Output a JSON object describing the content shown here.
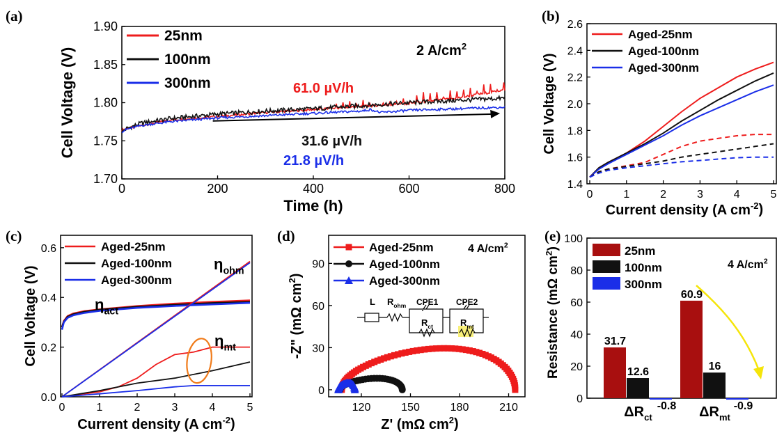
{
  "panels": [
    {
      "id": "a",
      "label": "(a)",
      "condition": "2 A/cm",
      "condition_sup": "2",
      "rates": [
        {
          "text": "61.0 µV/h",
          "color": "#ee1c1c"
        },
        {
          "text": "31.6 µV/h",
          "color": "#111111"
        },
        {
          "text": "21.8 µV/h",
          "color": "#1a2ee8"
        }
      ],
      "chart_data": {
        "type": "line",
        "xlabel": "Time (h)",
        "ylabel": "Cell Voltage (V)",
        "xlim": [
          0,
          800
        ],
        "ylim": [
          1.7,
          1.9
        ],
        "xticks": [
          "0",
          "200",
          "400",
          "600",
          "800"
        ],
        "yticks": [
          "1.70",
          "1.75",
          "1.80",
          "1.85",
          "1.90"
        ],
        "legend_position": "top-left",
        "series": [
          {
            "name": "25nm",
            "color": "#ee1c1c",
            "x": [
              0,
              10,
              40,
              100,
              200,
              300,
              400,
              500,
              600,
              700,
              800
            ],
            "y": [
              1.764,
              1.766,
              1.77,
              1.777,
              1.782,
              1.787,
              1.791,
              1.795,
              1.799,
              1.806,
              1.817
            ]
          },
          {
            "name": "100nm",
            "color": "#111111",
            "x": [
              0,
              10,
              40,
              100,
              200,
              300,
              400,
              500,
              600,
              700,
              800
            ],
            "y": [
              1.762,
              1.766,
              1.773,
              1.779,
              1.785,
              1.789,
              1.792,
              1.796,
              1.8,
              1.803,
              1.806
            ]
          },
          {
            "name": "300nm",
            "color": "#1a2ee8",
            "x": [
              0,
              10,
              40,
              100,
              200,
              300,
              400,
              500,
              520,
              540,
              600,
              700,
              800
            ],
            "y": [
              1.762,
              1.765,
              1.77,
              1.775,
              1.78,
              1.783,
              1.786,
              1.789,
              1.791,
              1.787,
              1.79,
              1.792,
              1.794
            ]
          }
        ],
        "arrow": {
          "x": [
            190,
            790
          ],
          "y": [
            1.776,
            1.786
          ]
        }
      }
    },
    {
      "id": "b",
      "label": "(b)",
      "chart_data": {
        "type": "line",
        "xlabel": "Current density (A cm",
        "xlabel_sup": "-2",
        "xlabel_tail": ")",
        "ylabel": "Cell Voltage (V)",
        "xlim": [
          0,
          5
        ],
        "ylim": [
          1.4,
          2.6
        ],
        "xticks": [
          "0",
          "1",
          "2",
          "3",
          "4",
          "5"
        ],
        "yticks": [
          "1.4",
          "1.6",
          "1.8",
          "2.0",
          "2.2",
          "2.4",
          "2.6"
        ],
        "legend_position": "top-left",
        "series": [
          {
            "name": "Aged-25nm",
            "color": "#ee1c1c",
            "dash": false,
            "x": [
              0,
              0.25,
              0.5,
              1,
              1.5,
              2,
              2.5,
              3,
              3.5,
              4,
              4.5,
              5
            ],
            "y": [
              1.45,
              1.52,
              1.56,
              1.63,
              1.72,
              1.83,
              1.94,
              2.04,
              2.12,
              2.2,
              2.26,
              2.31
            ]
          },
          {
            "name": "Aged-100nm",
            "color": "#111111",
            "dash": false,
            "x": [
              0,
              0.25,
              0.5,
              1,
              1.5,
              2,
              2.5,
              3,
              3.5,
              4,
              4.5,
              5
            ],
            "y": [
              1.45,
              1.52,
              1.56,
              1.63,
              1.7,
              1.78,
              1.87,
              1.95,
              2.03,
              2.1,
              2.17,
              2.23
            ]
          },
          {
            "name": "Aged-300nm",
            "color": "#1a2ee8",
            "dash": false,
            "x": [
              0,
              0.25,
              0.5,
              1,
              1.5,
              2,
              2.5,
              3,
              3.5,
              4,
              4.5,
              5
            ],
            "y": [
              1.45,
              1.51,
              1.55,
              1.62,
              1.69,
              1.76,
              1.84,
              1.91,
              1.97,
              2.03,
              2.09,
              2.14
            ]
          },
          {
            "name": "",
            "color": "#ee1c1c",
            "dash": true,
            "x": [
              0,
              0.25,
              0.5,
              1,
              1.5,
              2,
              2.5,
              3,
              3.5,
              4,
              4.5,
              5
            ],
            "y": [
              1.45,
              1.49,
              1.51,
              1.535,
              1.56,
              1.62,
              1.68,
              1.72,
              1.74,
              1.76,
              1.77,
              1.77
            ]
          },
          {
            "name": "",
            "color": "#111111",
            "dash": true,
            "x": [
              0,
              0.25,
              0.5,
              1,
              1.5,
              2,
              2.5,
              3,
              3.5,
              4,
              4.5,
              5
            ],
            "y": [
              1.45,
              1.49,
              1.51,
              1.53,
              1.55,
              1.57,
              1.6,
              1.62,
              1.64,
              1.66,
              1.68,
              1.7
            ]
          },
          {
            "name": "",
            "color": "#1a2ee8",
            "dash": true,
            "x": [
              0,
              0.25,
              0.5,
              1,
              1.5,
              2,
              2.5,
              3,
              3.5,
              4,
              4.5,
              5
            ],
            "y": [
              1.45,
              1.48,
              1.5,
              1.52,
              1.535,
              1.55,
              1.565,
              1.575,
              1.585,
              1.595,
              1.6,
              1.6
            ]
          }
        ]
      }
    },
    {
      "id": "c",
      "label": "(c)",
      "annotations": [
        {
          "main": "η",
          "sub": "ohm"
        },
        {
          "main": "η",
          "sub": "act"
        },
        {
          "main": "η",
          "sub": "mt"
        }
      ],
      "chart_data": {
        "type": "line",
        "xlabel": "Current density (A cm",
        "xlabel_sup": "-2",
        "xlabel_tail": ")",
        "ylabel": "Cell Voltage (V)",
        "xlim": [
          0,
          5
        ],
        "ylim": [
          0,
          0.65
        ],
        "xticks": [
          "0",
          "1",
          "2",
          "3",
          "4",
          "5"
        ],
        "yticks": [
          "0.0",
          "0.2",
          "0.4",
          "0.6"
        ],
        "ytick_values": [
          0,
          0.2,
          0.4,
          0.6
        ],
        "legend_position": "top-left",
        "series": [
          {
            "name": "Aged-25nm",
            "color": "#ee1c1c",
            "x": [
              0,
              0.05,
              0.15,
              0.3,
              0.6,
              1,
              2,
              3,
              4,
              5
            ],
            "y": [
              0.28,
              0.305,
              0.325,
              0.335,
              0.345,
              0.352,
              0.365,
              0.375,
              0.382,
              0.388
            ]
          },
          {
            "name": "Aged-100nm",
            "color": "#111111",
            "x": [
              0,
              0.05,
              0.15,
              0.3,
              0.6,
              1,
              2,
              3,
              4,
              5
            ],
            "y": [
              0.28,
              0.302,
              0.322,
              0.332,
              0.342,
              0.35,
              0.362,
              0.37,
              0.377,
              0.382
            ]
          },
          {
            "name": "Aged-300nm",
            "color": "#1a2ee8",
            "x": [
              0,
              0.05,
              0.15,
              0.3,
              0.6,
              1,
              2,
              3,
              4,
              5
            ],
            "y": [
              0.27,
              0.3,
              0.318,
              0.328,
              0.338,
              0.346,
              0.358,
              0.366,
              0.372,
              0.378
            ]
          },
          {
            "name": "",
            "color": "#ee1c1c",
            "x": [
              0,
              5
            ],
            "y": [
              0,
              0.545
            ]
          },
          {
            "name": "",
            "color": "#1a2ee8",
            "x": [
              0,
              5
            ],
            "y": [
              0,
              0.54
            ]
          },
          {
            "name": "",
            "color": "#ee1c1c",
            "x": [
              0,
              1,
              1.5,
              2,
              2.5,
              3,
              3.5,
              4,
              5
            ],
            "y": [
              0,
              0.02,
              0.04,
              0.075,
              0.13,
              0.17,
              0.18,
              0.2,
              0.2
            ]
          },
          {
            "name": "",
            "color": "#111111",
            "x": [
              0,
              1,
              2,
              3,
              4,
              5
            ],
            "y": [
              0,
              0.025,
              0.055,
              0.075,
              0.105,
              0.14
            ]
          },
          {
            "name": "",
            "color": "#1a2ee8",
            "x": [
              0,
              1,
              2,
              3,
              3.5,
              4,
              5
            ],
            "y": [
              0,
              0.012,
              0.025,
              0.04,
              0.045,
              0.045,
              0.045
            ]
          }
        ],
        "ellipse": {
          "cx": 3.65,
          "cy": 0.145,
          "rx": 0.32,
          "ry": 0.09,
          "color": "#f07b1a"
        }
      }
    },
    {
      "id": "d",
      "label": "(d)",
      "condition": "4 A/cm",
      "condition_sup": "2",
      "circuit": {
        "L": "L",
        "Rohm": "R",
        "Rohm_sub": "ohm",
        "CPE1": "CPE1",
        "Rct": "R",
        "Rct_sub": "ct",
        "CPE2": "CPE2",
        "Rmt": "R",
        "Rmt_sub": "mt"
      },
      "chart_data": {
        "type": "scatter",
        "xlabel": "Z' (mΩ cm",
        "xlabel_sup": "2",
        "xlabel_tail": ")",
        "ylabel": "-Z\" (mΩ cm",
        "ylabel_sup": "2",
        "ylabel_tail": ")",
        "xlim": [
          100,
          220
        ],
        "ylim": [
          -5,
          110
        ],
        "xticks": [
          "120",
          "150",
          "180",
          "210"
        ],
        "xtick_values": [
          120,
          150,
          180,
          210
        ],
        "yticks": [
          "0",
          "30",
          "60",
          "90"
        ],
        "ytick_values": [
          0,
          30,
          60,
          90
        ],
        "legend_position": "top-left",
        "series": [
          {
            "name": "Aged-25nm",
            "color": "#ee1c1c",
            "marker": "square",
            "arc": {
              "x0": 108,
              "x1": 214,
              "peak": 29,
              "xpeak": 178,
              "tail": 5
            }
          },
          {
            "name": "Aged-100nm",
            "color": "#111111",
            "marker": "circle",
            "arc": {
              "x0": 107,
              "x1": 145,
              "peak": 8,
              "xpeak": 130,
              "tail": 1
            }
          },
          {
            "name": "Aged-300nm",
            "color": "#1a2ee8",
            "marker": "triangle",
            "arc": {
              "x0": 106,
              "x1": 116,
              "peak": 5,
              "xpeak": 111,
              "tail": 3
            }
          }
        ]
      }
    },
    {
      "id": "e",
      "label": "(e)",
      "condition": "4 A/cm",
      "condition_sup": "2",
      "chart_data": {
        "type": "bar",
        "ylabel": "Resistance (mΩ cm",
        "ylabel_sup": "2",
        "ylabel_tail": ")",
        "ylim": [
          0,
          100
        ],
        "yticks": [
          "0",
          "20",
          "40",
          "60",
          "80",
          "100"
        ],
        "ytick_values": [
          0,
          20,
          40,
          60,
          80,
          100
        ],
        "categories": [
          {
            "main": "ΔR",
            "sub": "ct"
          },
          {
            "main": "ΔR",
            "sub": "mt"
          }
        ],
        "legend_position": "top-left",
        "series": [
          {
            "name": "25nm",
            "color": "#a80f0f",
            "values": [
              31.7,
              60.9
            ],
            "labels": [
              "31.7",
              "60.9"
            ]
          },
          {
            "name": "100nm",
            "color": "#111111",
            "values": [
              12.6,
              16
            ],
            "labels": [
              "12.6",
              "16"
            ]
          },
          {
            "name": "300nm",
            "color": "#1a2ee8",
            "values": [
              -0.8,
              -0.9
            ],
            "labels": [
              "-0.8",
              "-0.9"
            ]
          }
        ],
        "arrow_color": "#f5e50a"
      }
    }
  ]
}
